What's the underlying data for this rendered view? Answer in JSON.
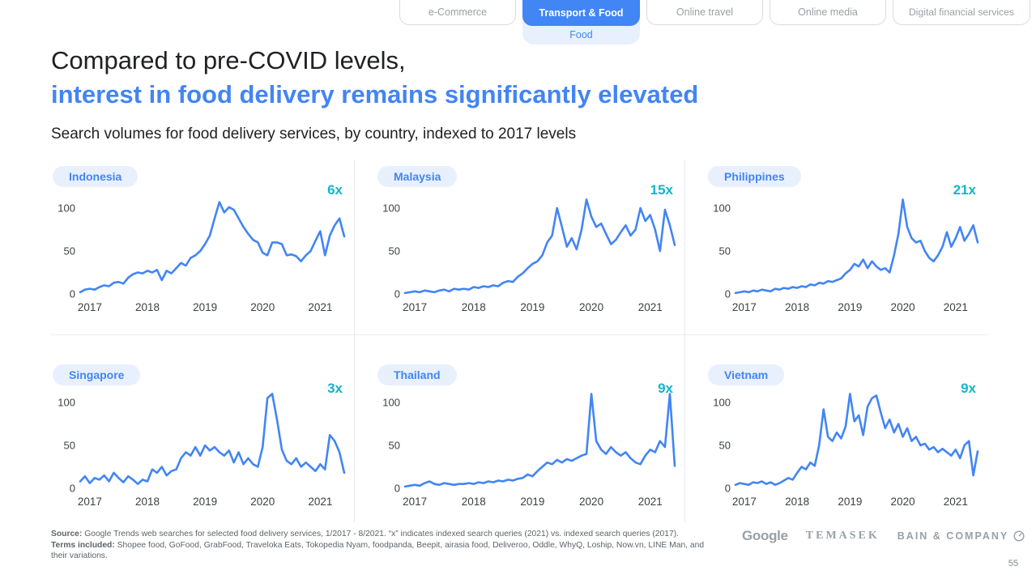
{
  "tabs": {
    "items": [
      {
        "label": "e-Commerce",
        "active": false
      },
      {
        "label": "Transport & Food",
        "active": true,
        "sub_label": "Food"
      },
      {
        "label": "Online travel",
        "active": false
      },
      {
        "label": "Online media",
        "active": false
      },
      {
        "label": "Digital financial services",
        "active": false
      }
    ]
  },
  "title": {
    "line1": "Compared to pre-COVID levels,",
    "line2": "interest in food delivery remains significantly elevated"
  },
  "subtitle": "Search volumes for food delivery services, by country, indexed to 2017 levels",
  "colors": {
    "accent_blue": "#4285f4",
    "line": "#4285f4",
    "pill_bg": "#e8f0fe",
    "teal_multiplier": "#12b5cb",
    "tab_active_bg": "#4285f4",
    "tab_inactive_text": "#9aa0a6",
    "divider": "#e8eaed",
    "text_dark": "#202124",
    "footnote_gray": "#5f6368",
    "logo_gray": "#9aa0a6"
  },
  "chart_data": [
    {
      "type": "line",
      "country": "Indonesia",
      "multiplier": "6x",
      "x_range": [
        "2017-01",
        "2021-08"
      ],
      "x_ticks": [
        "2017",
        "2018",
        "2019",
        "2020",
        "2021"
      ],
      "y_ticks": [
        0,
        50,
        100
      ],
      "ylim": [
        0,
        112
      ],
      "grid": false,
      "values": [
        2,
        5,
        6,
        5,
        8,
        10,
        9,
        13,
        14,
        12,
        19,
        23,
        25,
        24,
        27,
        25,
        28,
        16,
        27,
        24,
        30,
        36,
        33,
        42,
        45,
        50,
        58,
        68,
        88,
        107,
        95,
        101,
        98,
        88,
        78,
        70,
        63,
        60,
        48,
        45,
        60,
        60,
        58,
        45,
        46,
        44,
        38,
        45,
        50,
        62,
        73,
        45,
        68,
        80,
        88,
        67
      ]
    },
    {
      "type": "line",
      "country": "Malaysia",
      "multiplier": "15x",
      "x_range": [
        "2017-01",
        "2021-08"
      ],
      "x_ticks": [
        "2017",
        "2018",
        "2019",
        "2020",
        "2021"
      ],
      "y_ticks": [
        0,
        50,
        100
      ],
      "ylim": [
        0,
        112
      ],
      "grid": false,
      "values": [
        1,
        2,
        3,
        2,
        4,
        3,
        2,
        4,
        5,
        3,
        6,
        5,
        6,
        5,
        8,
        7,
        9,
        8,
        10,
        9,
        13,
        15,
        14,
        20,
        24,
        30,
        35,
        38,
        45,
        60,
        68,
        100,
        78,
        55,
        65,
        52,
        75,
        110,
        90,
        78,
        82,
        70,
        58,
        63,
        72,
        80,
        68,
        75,
        100,
        85,
        92,
        75,
        50,
        98,
        80,
        57
      ]
    },
    {
      "type": "line",
      "country": "Philippines",
      "multiplier": "21x",
      "x_range": [
        "2017-01",
        "2021-08"
      ],
      "x_ticks": [
        "2017",
        "2018",
        "2019",
        "2020",
        "2021"
      ],
      "y_ticks": [
        0,
        50,
        100
      ],
      "ylim": [
        0,
        112
      ],
      "grid": false,
      "values": [
        1,
        2,
        3,
        2,
        4,
        3,
        5,
        4,
        3,
        6,
        5,
        7,
        6,
        8,
        7,
        9,
        8,
        11,
        10,
        13,
        12,
        15,
        14,
        16,
        18,
        24,
        28,
        35,
        32,
        40,
        30,
        38,
        32,
        28,
        30,
        25,
        45,
        70,
        110,
        78,
        65,
        60,
        62,
        50,
        42,
        38,
        45,
        55,
        72,
        55,
        65,
        78,
        62,
        70,
        80,
        60
      ]
    },
    {
      "type": "line",
      "country": "Singapore",
      "multiplier": "3x",
      "x_range": [
        "2017-01",
        "2021-08"
      ],
      "x_ticks": [
        "2017",
        "2018",
        "2019",
        "2020",
        "2021"
      ],
      "y_ticks": [
        0,
        50,
        100
      ],
      "ylim": [
        0,
        112
      ],
      "grid": false,
      "values": [
        8,
        14,
        6,
        12,
        10,
        15,
        8,
        18,
        12,
        7,
        14,
        10,
        5,
        10,
        8,
        22,
        18,
        25,
        15,
        20,
        22,
        35,
        42,
        38,
        48,
        38,
        50,
        44,
        48,
        42,
        38,
        44,
        30,
        42,
        28,
        35,
        28,
        25,
        48,
        105,
        110,
        80,
        45,
        32,
        28,
        35,
        25,
        30,
        25,
        20,
        28,
        22,
        62,
        55,
        42,
        18
      ]
    },
    {
      "type": "line",
      "country": "Thailand",
      "multiplier": "9x",
      "x_range": [
        "2017-01",
        "2021-08"
      ],
      "x_ticks": [
        "2017",
        "2018",
        "2019",
        "2020",
        "2021"
      ],
      "y_ticks": [
        0,
        50,
        100
      ],
      "ylim": [
        0,
        112
      ],
      "grid": false,
      "values": [
        2,
        3,
        4,
        3,
        6,
        8,
        5,
        4,
        6,
        5,
        4,
        5,
        5,
        6,
        5,
        7,
        6,
        8,
        7,
        9,
        8,
        10,
        9,
        11,
        12,
        16,
        14,
        20,
        25,
        30,
        28,
        33,
        30,
        34,
        32,
        35,
        38,
        40,
        110,
        55,
        45,
        40,
        48,
        42,
        38,
        42,
        35,
        30,
        28,
        38,
        45,
        42,
        55,
        48,
        110,
        26
      ]
    },
    {
      "type": "line",
      "country": "Vietnam",
      "multiplier": "9x",
      "x_range": [
        "2017-01",
        "2021-08"
      ],
      "x_ticks": [
        "2017",
        "2018",
        "2019",
        "2020",
        "2021"
      ],
      "y_ticks": [
        0,
        50,
        100
      ],
      "ylim": [
        0,
        112
      ],
      "grid": false,
      "values": [
        4,
        6,
        5,
        4,
        7,
        6,
        8,
        5,
        7,
        4,
        6,
        9,
        12,
        10,
        18,
        25,
        22,
        30,
        26,
        50,
        92,
        60,
        55,
        65,
        58,
        72,
        110,
        78,
        85,
        62,
        95,
        105,
        108,
        88,
        70,
        80,
        65,
        75,
        60,
        70,
        55,
        60,
        50,
        52,
        45,
        48,
        42,
        46,
        42,
        38,
        45,
        35,
        50,
        55,
        15,
        43
      ]
    }
  ],
  "footnote": {
    "source_label": "Source:",
    "source_text": "Google Trends web searches for selected food delivery services, 1/2017 - 8/2021. “x” indicates indexed search queries (2021) vs. indexed search queries (2017).",
    "terms_label": "Terms included:",
    "terms_text": "Shopee food, GoFood, GrabFood, Traveloka Eats, Tokopedia Nyam, foodpanda, Beepit, airasia food, Deliveroo, Oddle, WhyQ, Loship, Now.vn, LINE Man, and their variations."
  },
  "logos": {
    "google": "Google",
    "temasek": "TEMASEK",
    "bain": "BAIN & COMPANY"
  },
  "page_number": "55"
}
